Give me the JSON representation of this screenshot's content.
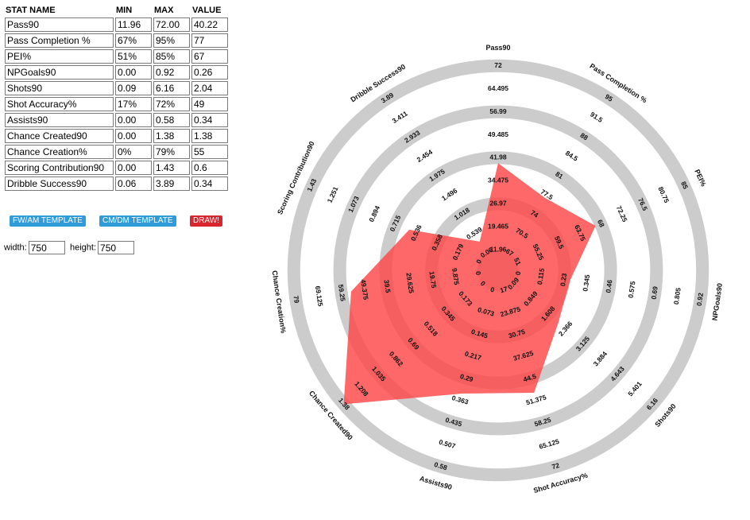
{
  "table": {
    "headers": [
      "STAT NAME",
      "MIN",
      "MAX",
      "VALUE"
    ],
    "rows": [
      {
        "name": "Pass90",
        "min": "11.96",
        "max": "72.00",
        "value": "40.22"
      },
      {
        "name": "Pass Completion %",
        "min": "67%",
        "max": "95%",
        "value": "77"
      },
      {
        "name": "PEI%",
        "min": "51%",
        "max": "85%",
        "value": "67"
      },
      {
        "name": "NPGoals90",
        "min": "0.00",
        "max": "0.92",
        "value": "0.26"
      },
      {
        "name": "Shots90",
        "min": "0.09",
        "max": "6.16",
        "value": "2.04"
      },
      {
        "name": "Shot Accuracy%",
        "min": "17%",
        "max": "72%",
        "value": "49"
      },
      {
        "name": "Assists90",
        "min": "0.00",
        "max": "0.58",
        "value": "0.34"
      },
      {
        "name": "Chance Created90",
        "min": "0.00",
        "max": "1.38",
        "value": "1.38"
      },
      {
        "name": "Chance Creation%",
        "min": "0%",
        "max": "79%",
        "value": "55"
      },
      {
        "name": "Scoring Contribution90",
        "min": "0.00",
        "max": "1.43",
        "value": "0.6"
      },
      {
        "name": "Dribble Success90",
        "min": "0.06",
        "max": "3.89",
        "value": "0.34"
      }
    ]
  },
  "buttons": {
    "fw_template": "FW/AM TEMPLATE",
    "cm_template": "CM/DM TEMPLATE",
    "draw": "DRAW!"
  },
  "size": {
    "width_label": "width:",
    "width_value": "750",
    "height_label": "height:",
    "height_value": "750"
  },
  "colors": {
    "ring": "#cccccc",
    "area": "#ff4747",
    "button_blue": "#2f9bd9",
    "button_red": "#d9262e"
  },
  "chart_data": {
    "type": "radar",
    "axes": [
      {
        "name": "Pass90",
        "min": 11.96,
        "max": 72,
        "value": 40.22,
        "ticks": [
          "11.96",
          "19.465",
          "26.97",
          "34.475",
          "41.98",
          "49.485",
          "56.99",
          "64.495",
          "72"
        ]
      },
      {
        "name": "Pass Completion %",
        "min": 67,
        "max": 95,
        "value": 77,
        "ticks": [
          "67",
          "70.5",
          "74",
          "77.5",
          "81",
          "84.5",
          "88",
          "91.5",
          "95"
        ]
      },
      {
        "name": "PEI%",
        "min": 51,
        "max": 85,
        "value": 67,
        "ticks": [
          "51",
          "55.25",
          "59.5",
          "63.75",
          "68",
          "72.25",
          "76.5",
          "80.75",
          "85"
        ]
      },
      {
        "name": "NPGoals90",
        "min": 0,
        "max": 0.92,
        "value": 0.26,
        "ticks": [
          "0",
          "0.115",
          "0.23",
          "0.345",
          "0.46",
          "0.575",
          "0.69",
          "0.805",
          "0.92"
        ]
      },
      {
        "name": "Shots90",
        "min": 0.09,
        "max": 6.16,
        "value": 2.04,
        "ticks": [
          "0.09",
          "0.849",
          "1.608",
          "2.366",
          "3.125",
          "3.884",
          "4.643",
          "5.401",
          "6.16"
        ]
      },
      {
        "name": "Shot Accuracy%",
        "min": 17,
        "max": 72,
        "value": 49,
        "ticks": [
          "17",
          "23.875",
          "30.75",
          "37.625",
          "44.5",
          "51.375",
          "58.25",
          "65.125",
          "72"
        ]
      },
      {
        "name": "Assists90",
        "min": 0,
        "max": 0.58,
        "value": 0.34,
        "ticks": [
          "0",
          "0.073",
          "0.145",
          "0.217",
          "0.29",
          "0.363",
          "0.435",
          "0.507",
          "0.58"
        ]
      },
      {
        "name": "Chance Created90",
        "min": 0,
        "max": 1.38,
        "value": 1.38,
        "ticks": [
          "0",
          "0.173",
          "0.345",
          "0.518",
          "0.69",
          "0.862",
          "1.035",
          "1.208",
          "1.38"
        ]
      },
      {
        "name": "Chance Creation%",
        "min": 0,
        "max": 79,
        "value": 55,
        "ticks": [
          "0",
          "9.875",
          "19.75",
          "29.625",
          "39.5",
          "49.375",
          "59.25",
          "69.125",
          "79"
        ]
      },
      {
        "name": "Scoring Contribution90",
        "min": 0,
        "max": 1.43,
        "value": 0.6,
        "ticks": [
          "0",
          "0.179",
          "0.358",
          "0.536",
          "0.715",
          "0.894",
          "1.073",
          "1.251",
          "1.43"
        ]
      },
      {
        "name": "Dribble Success90",
        "min": 0.06,
        "max": 3.89,
        "value": 0.34,
        "ticks": [
          "0.06",
          "0.539",
          "1.018",
          "1.496",
          "1.975",
          "2.454",
          "2.933",
          "3.411",
          "3.89"
        ]
      }
    ]
  }
}
